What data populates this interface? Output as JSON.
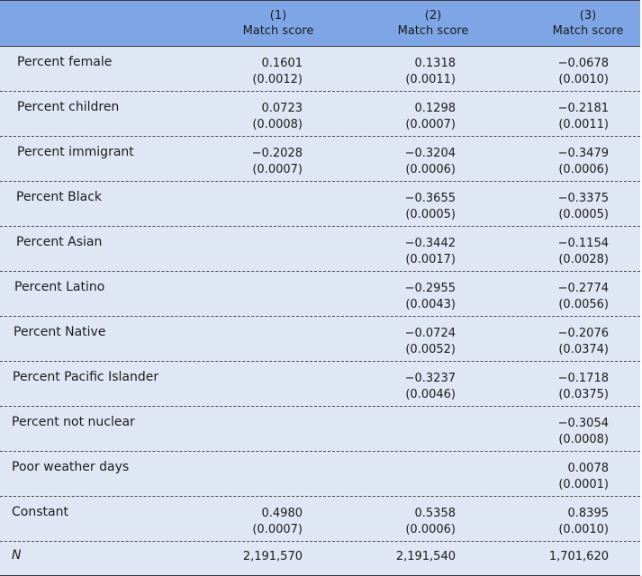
{
  "header": {
    "columns": [
      {
        "num": "(1)",
        "label": "Match score"
      },
      {
        "num": "(2)",
        "label": "Match score"
      },
      {
        "num": "(3)",
        "label": "Match score"
      }
    ]
  },
  "rows": [
    {
      "label": "Percent female",
      "c1": [
        "0.1601",
        "(0.0012)"
      ],
      "c2": [
        "0.1318",
        "(0.0011)"
      ],
      "c3": [
        "−0.0678",
        "(0.0010)"
      ]
    },
    {
      "label": "Percent children",
      "c1": [
        "0.0723",
        "(0.0008)"
      ],
      "c2": [
        "0.1298",
        "(0.0007)"
      ],
      "c3": [
        "−0.2181",
        "(0.0011)"
      ]
    },
    {
      "label": "Percent immigrant",
      "c1": [
        "−0.2028",
        "(0.0007)"
      ],
      "c2": [
        "−0.3204",
        "(0.0006)"
      ],
      "c3": [
        "−0.3479",
        "(0.0006)"
      ]
    },
    {
      "label": "Percent Black",
      "c1": [
        "",
        ""
      ],
      "c2": [
        "−0.3655",
        "(0.0005)"
      ],
      "c3": [
        "−0.3375",
        "(0.0005)"
      ]
    },
    {
      "label": "Percent Asian",
      "c1": [
        "",
        ""
      ],
      "c2": [
        "−0.3442",
        "(0.0017)"
      ],
      "c3": [
        "−0.1154",
        "(0.0028)"
      ]
    },
    {
      "label": "Percent Latino",
      "c1": [
        "",
        ""
      ],
      "c2": [
        "−0.2955",
        "(0.0043)"
      ],
      "c3": [
        "−0.2774",
        "(0.0056)"
      ]
    },
    {
      "label": "Percent Native",
      "c1": [
        "",
        ""
      ],
      "c2": [
        "−0.0724",
        "(0.0052)"
      ],
      "c3": [
        "−0.2076",
        "(0.0374)"
      ]
    },
    {
      "label": "Percent Pacific Islander",
      "c1": [
        "",
        ""
      ],
      "c2": [
        "−0.3237",
        "(0.0046)"
      ],
      "c3": [
        "−0.1718",
        "(0.0375)"
      ]
    },
    {
      "label": "Percent not nuclear",
      "c1": [
        "",
        ""
      ],
      "c2": [
        "",
        ""
      ],
      "c3": [
        "−0.3054",
        "(0.0008)"
      ]
    },
    {
      "label": "Poor weather days",
      "c1": [
        "",
        ""
      ],
      "c2": [
        "",
        ""
      ],
      "c3": [
        "0.0078",
        "(0.0001)"
      ]
    },
    {
      "label": "Constant",
      "c1": [
        "0.4980",
        "(0.0007)"
      ],
      "c2": [
        "0.5358",
        "(0.0006)"
      ],
      "c3": [
        "0.8395",
        "(0.0010)"
      ]
    }
  ],
  "n_row": {
    "label": "N",
    "c1": "2,191,570",
    "c2": "2,191,540",
    "c3": "1,701,620"
  }
}
